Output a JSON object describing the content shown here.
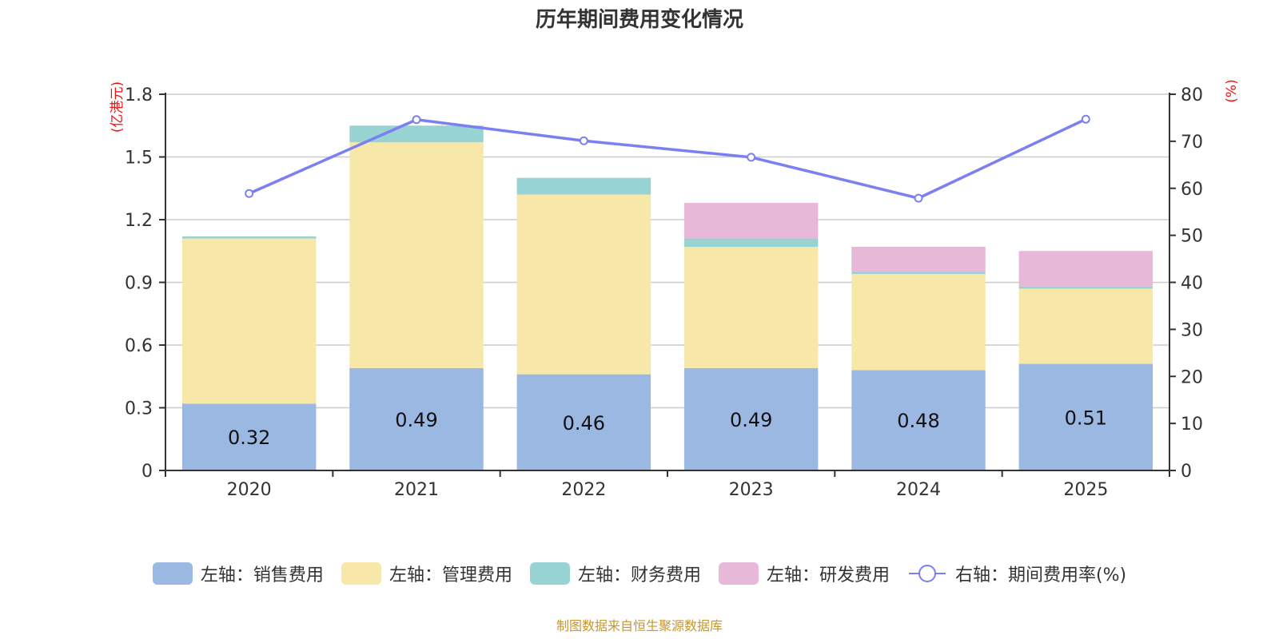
{
  "chart_data": {
    "type": "bar",
    "stacked": true,
    "title": "历年期间费用变化情况",
    "categories": [
      "2020",
      "2021",
      "2022",
      "2023",
      "2024",
      "2025"
    ],
    "left_axis": {
      "label": "(亿港元)",
      "ylim": [
        0,
        1.8
      ],
      "ticks": [
        "0",
        "0.3",
        "0.6",
        "0.9",
        "1.2",
        "1.5",
        "1.8"
      ],
      "tick_values": [
        0,
        0.3,
        0.6,
        0.9,
        1.2,
        1.5,
        1.8
      ]
    },
    "right_axis": {
      "label": "(%)",
      "ylim": [
        0,
        80
      ],
      "ticks": [
        "0",
        "10",
        "20",
        "30",
        "40",
        "50",
        "60",
        "70",
        "80"
      ],
      "tick_values": [
        0,
        10,
        20,
        30,
        40,
        50,
        60,
        70,
        80
      ]
    },
    "grid": true,
    "legend_position": "bottom",
    "series": [
      {
        "name": "左轴：销售费用",
        "type": "bar",
        "axis": "left",
        "color": "#9bb8e2",
        "values": [
          0.32,
          0.49,
          0.46,
          0.49,
          0.48,
          0.51
        ],
        "labels": [
          "0.32",
          "0.49",
          "0.46",
          "0.49",
          "0.48",
          "0.51"
        ]
      },
      {
        "name": "左轴：管理费用",
        "type": "bar",
        "axis": "left",
        "color": "#f7e7a9",
        "values": [
          0.79,
          1.08,
          0.86,
          0.58,
          0.46,
          0.36
        ]
      },
      {
        "name": "左轴：财务费用",
        "type": "bar",
        "axis": "left",
        "color": "#98d3d4",
        "values": [
          0.01,
          0.08,
          0.08,
          0.04,
          0.01,
          0.01
        ]
      },
      {
        "name": "左轴：研发费用",
        "type": "bar",
        "axis": "left",
        "color": "#e7b8d8",
        "values": [
          0,
          0,
          0,
          0.17,
          0.12,
          0.17
        ]
      },
      {
        "name": "右轴：期间费用率(%)",
        "type": "line",
        "axis": "right",
        "color": "#7b7ff0",
        "values": [
          58.9,
          74.6,
          70.1,
          66.6,
          57.9,
          74.7
        ]
      }
    ]
  },
  "footer": {
    "source": "制图数据来自恒生聚源数据库"
  }
}
